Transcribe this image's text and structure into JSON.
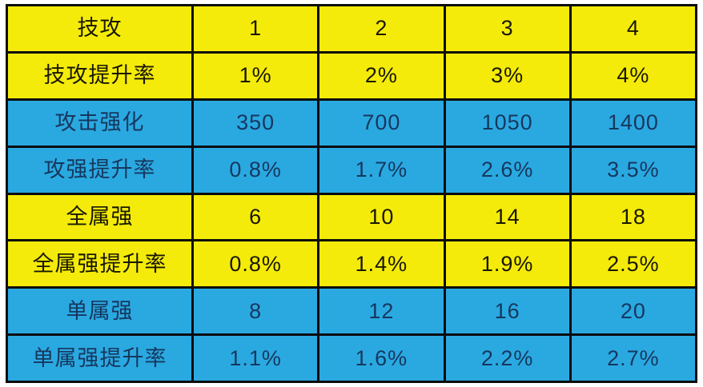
{
  "colors": {
    "yellow_row_bg": "#f5eb0a",
    "blue_row_bg": "#2aa9e1",
    "border": "#0c0c0c",
    "yellow_row_text": "#181800",
    "blue_row_text": "#17375e",
    "page_bg": "#ffffff"
  },
  "table": {
    "rows": [
      {
        "label": "技攻",
        "theme": "yellow",
        "values": [
          "1",
          "2",
          "3",
          "4"
        ]
      },
      {
        "label": "技攻提升率",
        "theme": "yellow",
        "values": [
          "1%",
          "2%",
          "3%",
          "4%"
        ]
      },
      {
        "label": "攻击强化",
        "theme": "blue",
        "values": [
          "350",
          "700",
          "1050",
          "1400"
        ]
      },
      {
        "label": "攻强提升率",
        "theme": "blue",
        "values": [
          "0.8%",
          "1.7%",
          "2.6%",
          "3.5%"
        ]
      },
      {
        "label": "全属强",
        "theme": "yellow",
        "values": [
          "6",
          "10",
          "14",
          "18"
        ]
      },
      {
        "label": "全属强提升率",
        "theme": "yellow",
        "values": [
          "0.8%",
          "1.4%",
          "1.9%",
          "2.5%"
        ]
      },
      {
        "label": "单属强",
        "theme": "blue",
        "values": [
          "8",
          "12",
          "16",
          "20"
        ]
      },
      {
        "label": "单属强提升率",
        "theme": "blue",
        "values": [
          "1.1%",
          "1.6%",
          "2.2%",
          "2.7%"
        ]
      }
    ]
  },
  "chart_data": {
    "type": "table",
    "title": "",
    "categories": [
      "1",
      "2",
      "3",
      "4"
    ],
    "series": [
      {
        "name": "技攻",
        "values": [
          1,
          2,
          3,
          4
        ]
      },
      {
        "name": "技攻提升率",
        "values": [
          "1%",
          "2%",
          "3%",
          "4%"
        ]
      },
      {
        "name": "攻击强化",
        "values": [
          350,
          700,
          1050,
          1400
        ]
      },
      {
        "name": "攻强提升率",
        "values": [
          "0.8%",
          "1.7%",
          "2.6%",
          "3.5%"
        ]
      },
      {
        "name": "全属强",
        "values": [
          6,
          10,
          14,
          18
        ]
      },
      {
        "name": "全属强提升率",
        "values": [
          "0.8%",
          "1.4%",
          "1.9%",
          "2.5%"
        ]
      },
      {
        "name": "单属强",
        "values": [
          8,
          12,
          16,
          20
        ]
      },
      {
        "name": "单属强提升率",
        "values": [
          "1.1%",
          "1.6%",
          "2.2%",
          "2.7%"
        ]
      }
    ],
    "layout": {
      "grid": true,
      "row_color_pattern": [
        "yellow",
        "yellow",
        "blue",
        "blue",
        "yellow",
        "yellow",
        "blue",
        "blue"
      ]
    }
  }
}
